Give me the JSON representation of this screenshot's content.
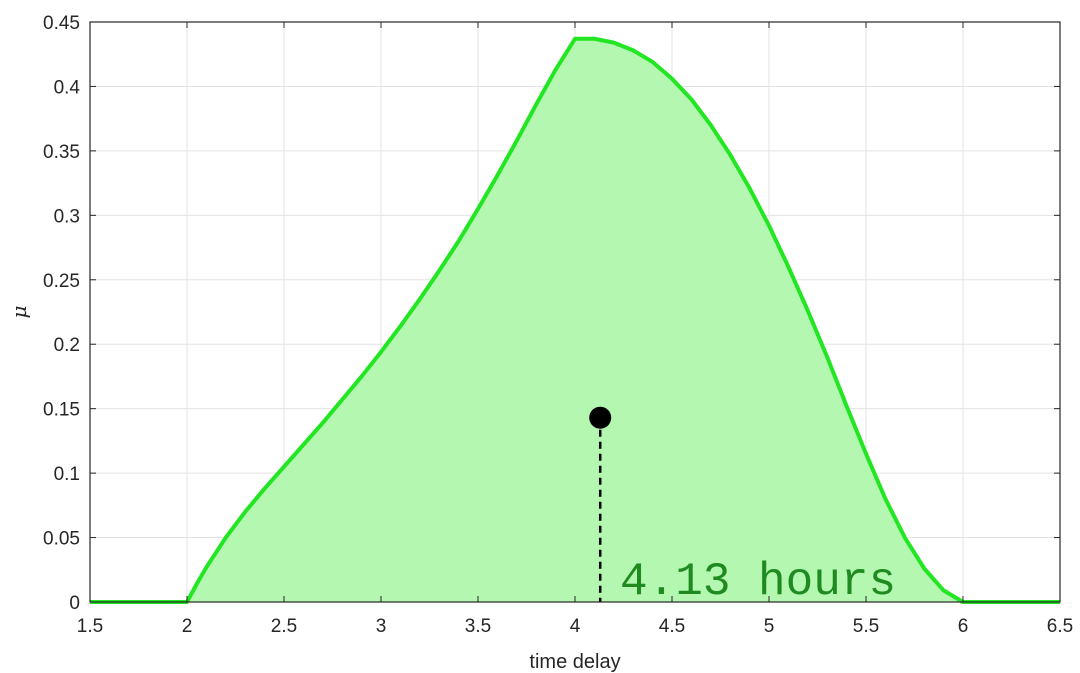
{
  "chart_data": {
    "type": "area",
    "xlabel": "time delay",
    "ylabel": "μ",
    "xlim": [
      1.5,
      6.5
    ],
    "ylim": [
      0,
      0.45
    ],
    "xticks": [
      1.5,
      2,
      2.5,
      3,
      3.5,
      4,
      4.5,
      5,
      5.5,
      6,
      6.5
    ],
    "xtick_labels": [
      "1.5",
      "2",
      "2.5",
      "3",
      "3.5",
      "4",
      "4.5",
      "5",
      "5.5",
      "6",
      "6.5"
    ],
    "yticks": [
      0,
      0.05,
      0.1,
      0.15,
      0.2,
      0.25,
      0.3,
      0.35,
      0.4,
      0.45
    ],
    "ytick_labels": [
      "0",
      "0.05",
      "0.1",
      "0.15",
      "0.2",
      "0.25",
      "0.3",
      "0.35",
      "0.4",
      "0.45"
    ],
    "grid": true,
    "series": [
      {
        "x": [
          1.5,
          2.0,
          2.05,
          2.1,
          2.2,
          2.3,
          2.4,
          2.5,
          2.6,
          2.7,
          2.8,
          2.9,
          3.0,
          3.1,
          3.2,
          3.3,
          3.4,
          3.5,
          3.6,
          3.7,
          3.8,
          3.9,
          4.0,
          4.05,
          4.1,
          4.2,
          4.3,
          4.4,
          4.5,
          4.6,
          4.7,
          4.8,
          4.9,
          5.0,
          5.1,
          5.2,
          5.3,
          5.4,
          5.5,
          5.6,
          5.7,
          5.8,
          5.9,
          6.0,
          6.5
        ],
        "y": [
          0,
          0,
          0.014,
          0.027,
          0.05,
          0.07,
          0.088,
          0.105,
          0.122,
          0.139,
          0.157,
          0.175,
          0.194,
          0.214,
          0.235,
          0.257,
          0.28,
          0.305,
          0.331,
          0.358,
          0.386,
          0.413,
          0.437,
          0.437,
          0.437,
          0.434,
          0.428,
          0.419,
          0.406,
          0.39,
          0.37,
          0.347,
          0.321,
          0.292,
          0.26,
          0.226,
          0.19,
          0.152,
          0.115,
          0.08,
          0.05,
          0.026,
          0.009,
          0,
          0
        ],
        "line_color": "#22e622",
        "fill_color": "#b3f7b0"
      }
    ],
    "marker": {
      "x": 4.13,
      "y": 0.143,
      "color": "#000000"
    },
    "annotation": "4.13 hours"
  }
}
